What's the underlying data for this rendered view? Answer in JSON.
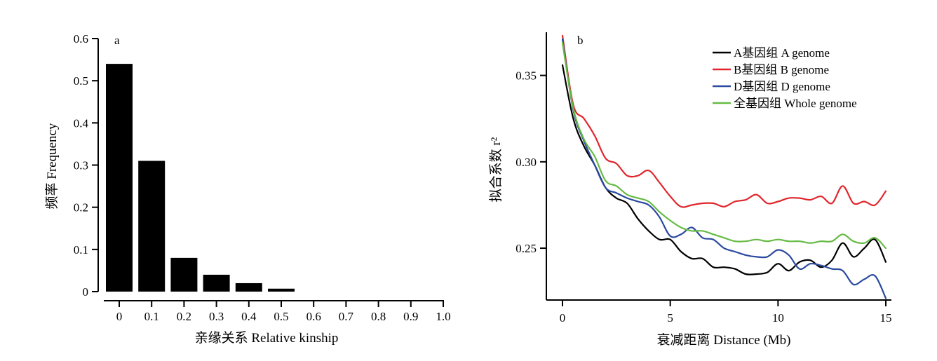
{
  "chart_data": [
    {
      "panel": "a",
      "type": "bar",
      "xlabel": "亲缘关系 Relative kinship",
      "ylabel": "频率 Frequency",
      "ylim": [
        0,
        0.6
      ],
      "yticks": [
        "0",
        "0.1",
        "0.2",
        "0.3",
        "0.4",
        "0.5",
        "0.6"
      ],
      "xticks": [
        "0",
        "0.1",
        "0.2",
        "0.3",
        "0.4",
        "0.5",
        "0.6",
        "0.7",
        "0.8",
        "0.9",
        "1.0"
      ],
      "categories": [
        "0",
        "0.1",
        "0.2",
        "0.3",
        "0.4",
        "0.5",
        "0.6",
        "0.7",
        "0.8",
        "0.9",
        "1.0"
      ],
      "values": [
        0.54,
        0.31,
        0.08,
        0.04,
        0.02,
        0.007,
        0,
        0,
        0,
        0,
        0
      ],
      "color": "#000000"
    },
    {
      "panel": "b",
      "type": "line",
      "xlabel": "衰减距离 Distance (Mb)",
      "ylabel": "拟合系数 r²",
      "xlim": [
        0,
        15
      ],
      "ylim": [
        0.22,
        0.375
      ],
      "xticks": [
        "0",
        "5",
        "10",
        "15"
      ],
      "yticks": [
        "0.25",
        "0.30",
        "0.35"
      ],
      "legend_position": "top-right",
      "x": [
        0,
        0.5,
        1,
        1.5,
        2,
        2.5,
        3,
        3.5,
        4,
        4.5,
        5,
        5.5,
        6,
        6.5,
        7,
        7.5,
        8,
        8.5,
        9,
        9.5,
        10,
        10.5,
        11,
        11.5,
        12,
        12.5,
        13,
        13.5,
        14,
        14.5,
        15
      ],
      "series": [
        {
          "name": "A基因组 A genome",
          "color": "#000000",
          "values": [
            0.356,
            0.325,
            0.309,
            0.298,
            0.285,
            0.279,
            0.276,
            0.267,
            0.26,
            0.255,
            0.255,
            0.248,
            0.244,
            0.244,
            0.239,
            0.239,
            0.238,
            0.235,
            0.235,
            0.236,
            0.241,
            0.237,
            0.242,
            0.243,
            0.239,
            0.243,
            0.253,
            0.245,
            0.25,
            0.255,
            0.242
          ]
        },
        {
          "name": "B基因组 B genome",
          "color": "#e0262c",
          "values": [
            0.373,
            0.333,
            0.325,
            0.315,
            0.302,
            0.299,
            0.292,
            0.292,
            0.295,
            0.288,
            0.28,
            0.274,
            0.275,
            0.276,
            0.276,
            0.274,
            0.277,
            0.278,
            0.281,
            0.276,
            0.277,
            0.279,
            0.279,
            0.278,
            0.28,
            0.276,
            0.286,
            0.276,
            0.277,
            0.275,
            0.283
          ]
        },
        {
          "name": "D基因组 D genome",
          "color": "#2b4aa0",
          "values": [
            0.371,
            0.33,
            0.312,
            0.298,
            0.285,
            0.282,
            0.279,
            0.277,
            0.275,
            0.268,
            0.257,
            0.258,
            0.262,
            0.256,
            0.255,
            0.25,
            0.248,
            0.246,
            0.245,
            0.245,
            0.249,
            0.246,
            0.238,
            0.241,
            0.24,
            0.238,
            0.237,
            0.229,
            0.232,
            0.234,
            0.221
          ]
        },
        {
          "name": "全基因组 Whole genome",
          "color": "#66bb44",
          "values": [
            0.369,
            0.331,
            0.313,
            0.303,
            0.289,
            0.286,
            0.281,
            0.279,
            0.277,
            0.271,
            0.266,
            0.262,
            0.26,
            0.26,
            0.258,
            0.256,
            0.254,
            0.254,
            0.255,
            0.254,
            0.255,
            0.254,
            0.254,
            0.253,
            0.254,
            0.254,
            0.258,
            0.254,
            0.253,
            0.256,
            0.25
          ]
        }
      ]
    }
  ]
}
